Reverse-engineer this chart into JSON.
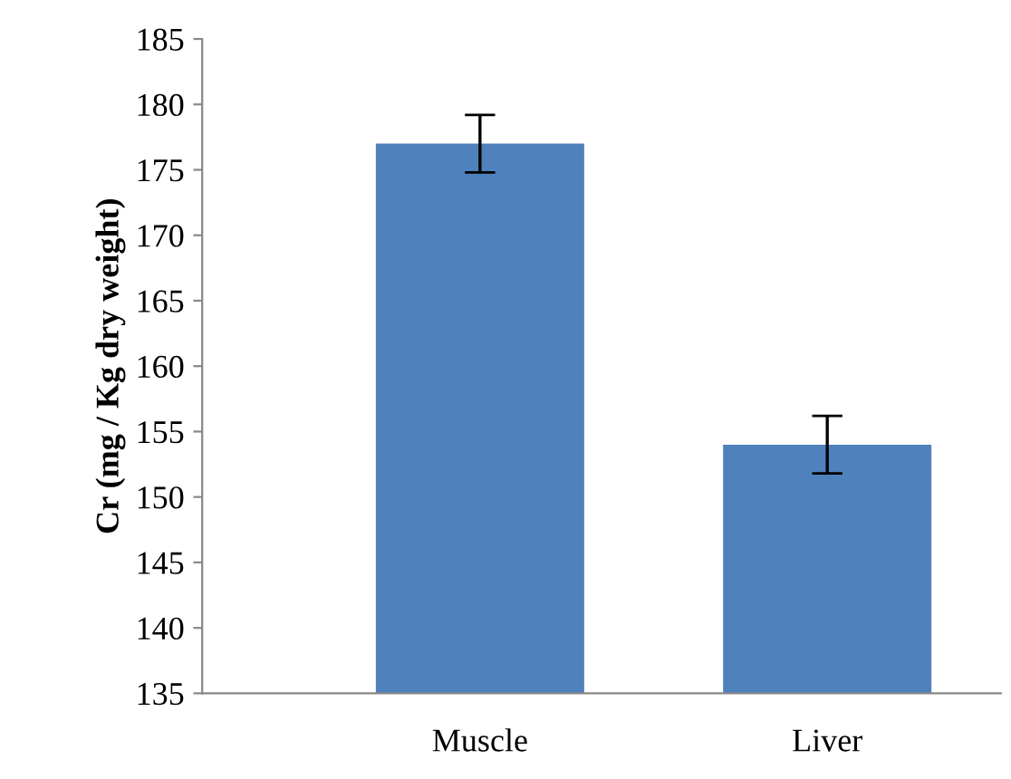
{
  "chart_data": {
    "type": "bar",
    "ylabel": "Cr (mg / Kg dry weight)",
    "categories": [
      "Muscle",
      "Liver"
    ],
    "values": [
      177,
      154
    ],
    "errors": [
      2.2,
      2.2
    ],
    "color": "#4f81bd",
    "ylim": [
      135,
      185
    ],
    "yticks": [
      135,
      140,
      145,
      150,
      155,
      160,
      165,
      170,
      175,
      180,
      185
    ],
    "grid": false
  }
}
